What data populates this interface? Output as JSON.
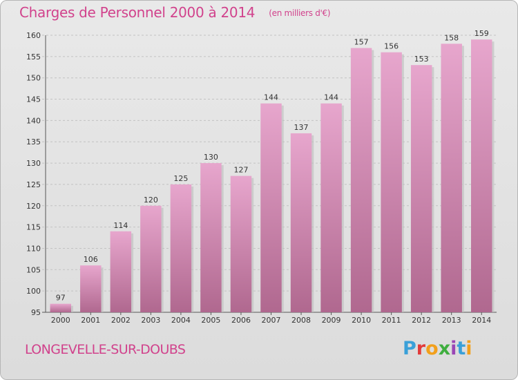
{
  "header": {
    "title": "Charges de Personnel 2000 à 2014",
    "subtitle": "(en milliers d'€)"
  },
  "footer": {
    "town": "LONGEVELLE-SUR-DOUBS",
    "logo_text": "Proxiti"
  },
  "chart_data": {
    "type": "bar",
    "title": "Charges de Personnel 2000 à 2014",
    "subtitle": "(en milliers d'€)",
    "categories": [
      "2000",
      "2001",
      "2002",
      "2003",
      "2004",
      "2005",
      "2006",
      "2007",
      "2008",
      "2009",
      "2010",
      "2011",
      "2012",
      "2013",
      "2014"
    ],
    "values": [
      97,
      106,
      114,
      120,
      125,
      130,
      127,
      144,
      137,
      144,
      157,
      156,
      153,
      158,
      159
    ],
    "ylim": [
      95,
      160
    ],
    "yticks": [
      95,
      100,
      105,
      110,
      115,
      120,
      125,
      130,
      135,
      140,
      145,
      150,
      155,
      160
    ],
    "grid": true,
    "colors": {
      "bar_top": "#e7a6cd",
      "bar_bottom": "#b0688f",
      "title": "#d1428c"
    }
  }
}
